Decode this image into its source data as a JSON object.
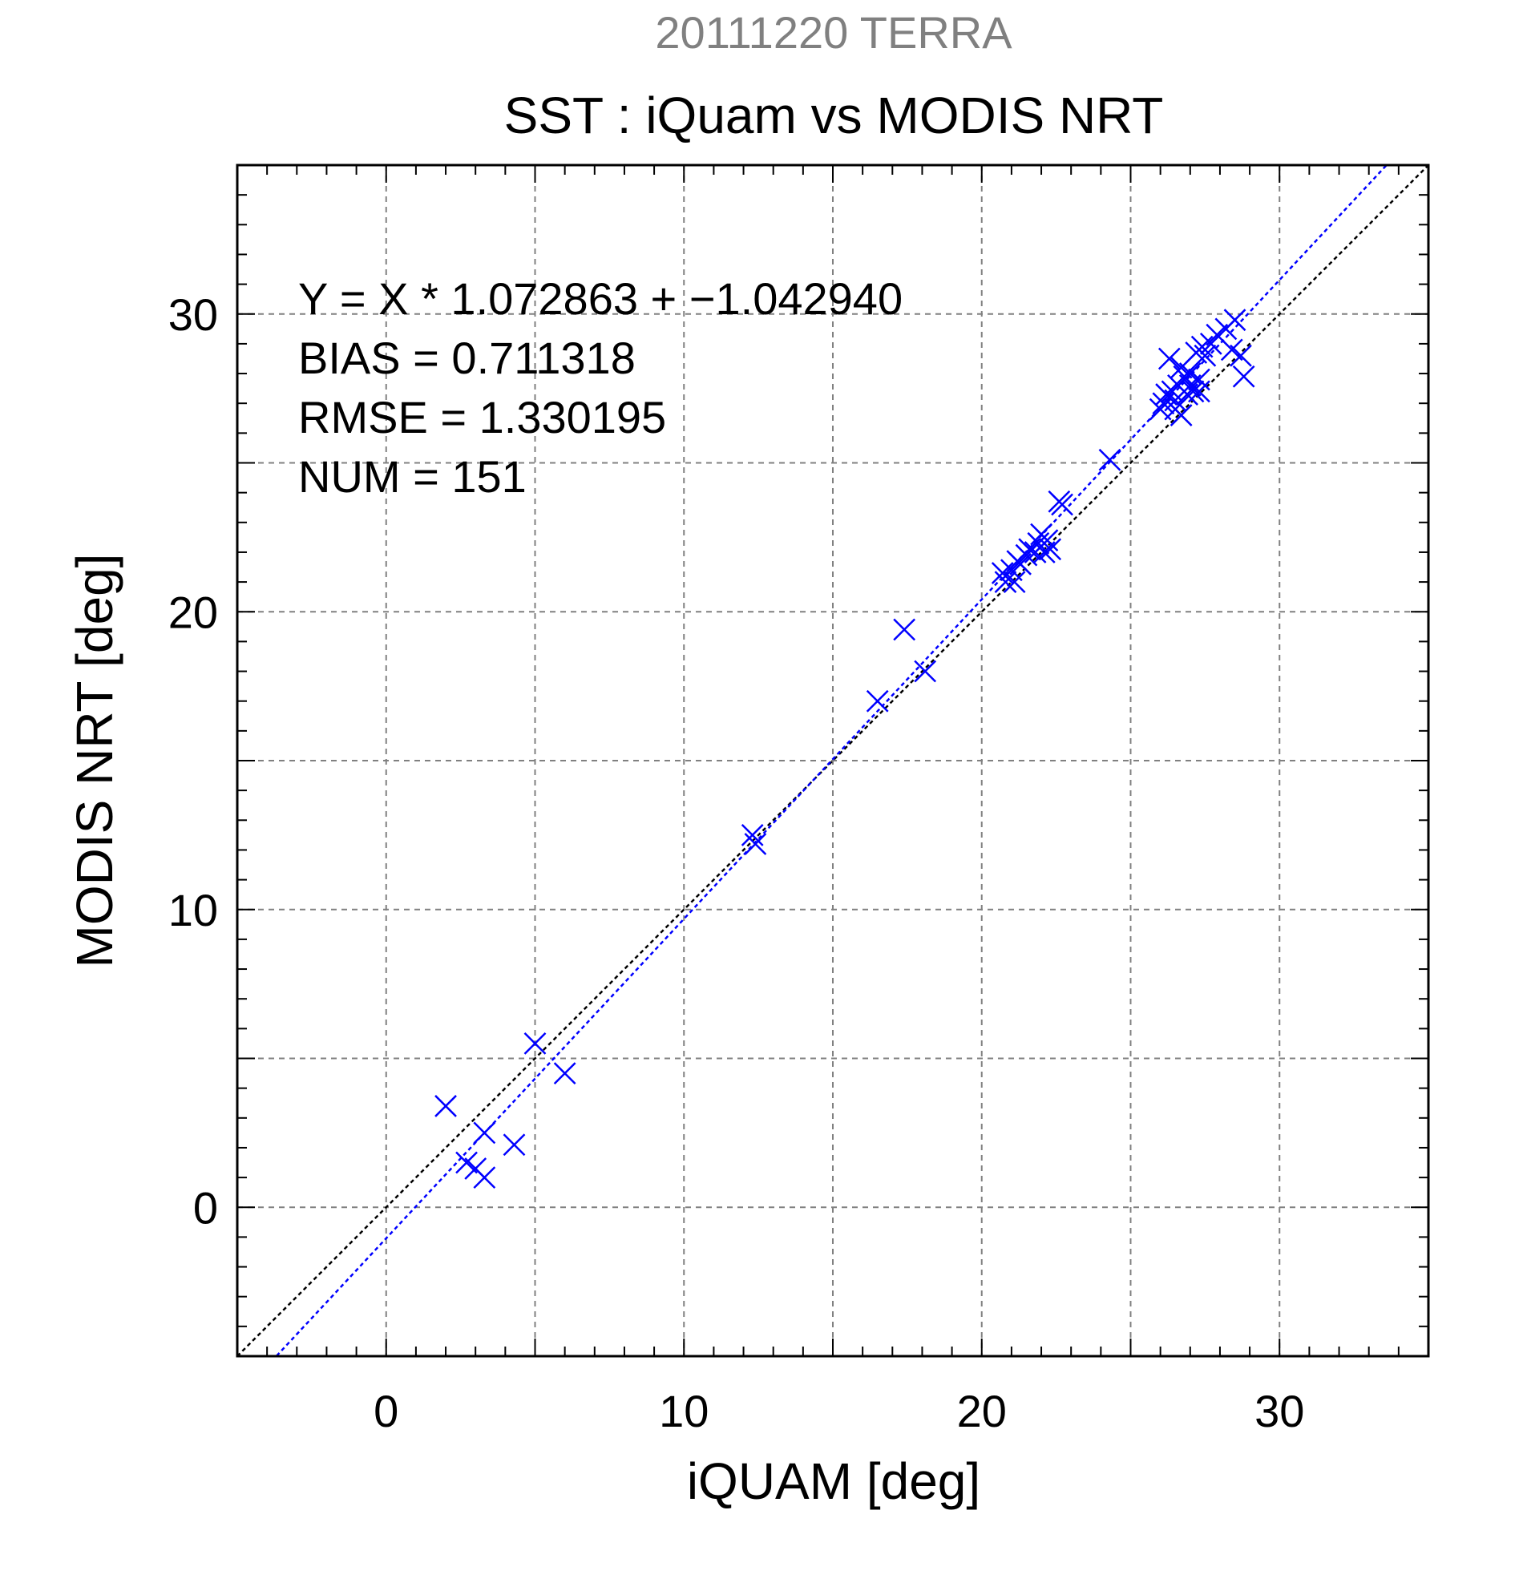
{
  "header": {
    "title": "20111220 TERRA",
    "subtitle": "SST : iQuam vs MODIS NRT"
  },
  "stats": {
    "equation": "Y = X * 1.072863 + −1.042940",
    "bias": "BIAS = 0.711318",
    "rmse": "RMSE = 1.330195",
    "num": "NUM = 151"
  },
  "chart_data": {
    "type": "scatter",
    "title": "20111220 TERRA",
    "subtitle": "SST : iQuam vs MODIS NRT",
    "xlabel": "iQUAM [deg]",
    "ylabel": "MODIS NRT [deg]",
    "xlim": [
      -5,
      35
    ],
    "ylim": [
      -5,
      35
    ],
    "x_ticks": [
      0,
      10,
      20,
      30
    ],
    "y_ticks": [
      0,
      10,
      20,
      30
    ],
    "grid": true,
    "colors": {
      "points": "#0000ff",
      "fit_line": "#0000ff",
      "identity_line": "#000000",
      "title": "#808080"
    },
    "fit": {
      "slope": 1.072863,
      "intercept": -1.04294
    },
    "identity": {
      "slope": 1,
      "intercept": 0
    },
    "series": [
      {
        "marker": "x",
        "points": [
          [
            2.0,
            3.4
          ],
          [
            2.7,
            1.5
          ],
          [
            3.0,
            1.3
          ],
          [
            3.3,
            2.5
          ],
          [
            3.3,
            1.0
          ],
          [
            4.3,
            2.1
          ],
          [
            5.0,
            5.5
          ],
          [
            6.0,
            4.5
          ],
          [
            12.3,
            12.5
          ],
          [
            12.4,
            12.2
          ],
          [
            16.5,
            17.0
          ],
          [
            17.4,
            19.4
          ],
          [
            18.1,
            18.0
          ],
          [
            20.7,
            21.3
          ],
          [
            20.8,
            21.0
          ],
          [
            21.0,
            21.4
          ],
          [
            21.1,
            21.0
          ],
          [
            21.2,
            21.7
          ],
          [
            21.3,
            21.6
          ],
          [
            21.5,
            21.9
          ],
          [
            21.6,
            22.1
          ],
          [
            21.8,
            22.0
          ],
          [
            21.9,
            22.3
          ],
          [
            22.0,
            22.6
          ],
          [
            22.1,
            22.0
          ],
          [
            22.2,
            22.4
          ],
          [
            22.3,
            22.1
          ],
          [
            22.6,
            23.7
          ],
          [
            22.7,
            23.6
          ],
          [
            24.3,
            25.1
          ],
          [
            26.0,
            26.8
          ],
          [
            26.1,
            27.0
          ],
          [
            26.2,
            27.3
          ],
          [
            26.3,
            28.5
          ],
          [
            26.4,
            27.4
          ],
          [
            26.5,
            27.1
          ],
          [
            26.5,
            26.8
          ],
          [
            26.6,
            27.6
          ],
          [
            26.7,
            28.2
          ],
          [
            26.7,
            26.6
          ],
          [
            26.8,
            27.9
          ],
          [
            26.9,
            27.3
          ],
          [
            27.0,
            28.0
          ],
          [
            27.0,
            27.6
          ],
          [
            27.1,
            27.4
          ],
          [
            27.2,
            28.7
          ],
          [
            27.3,
            27.8
          ],
          [
            27.3,
            27.4
          ],
          [
            27.4,
            28.9
          ],
          [
            27.5,
            28.6
          ],
          [
            27.7,
            29.0
          ],
          [
            27.9,
            29.3
          ],
          [
            28.2,
            29.5
          ],
          [
            28.4,
            28.8
          ],
          [
            28.5,
            29.8
          ],
          [
            28.7,
            28.6
          ],
          [
            28.8,
            27.9
          ]
        ]
      }
    ]
  }
}
